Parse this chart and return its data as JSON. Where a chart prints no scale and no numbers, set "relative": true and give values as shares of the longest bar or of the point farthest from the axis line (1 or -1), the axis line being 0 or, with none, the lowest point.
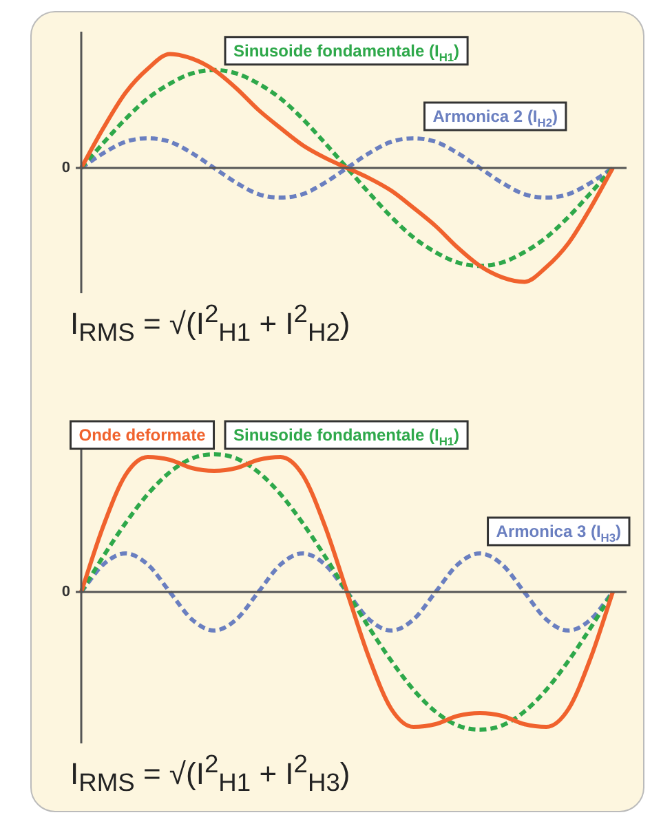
{
  "chart_data": [
    {
      "type": "line",
      "relative": true,
      "legend": false,
      "categories": [
        null,
        null,
        null,
        null,
        null,
        null,
        null,
        null,
        null,
        null,
        null,
        null,
        null,
        null,
        null,
        null,
        null,
        null,
        null,
        null,
        null,
        null,
        null,
        null,
        null
      ],
      "series": [
        {
          "color": "#f0622d",
          "line_style": "solid",
          "values": [
            0,
            0.35,
            0.66,
            0.87,
            1,
            0.96,
            0.86,
            0.7,
            0.51,
            0.35,
            0.2,
            0.09,
            0,
            -0.09,
            -0.2,
            -0.35,
            -0.51,
            -0.7,
            -0.86,
            -0.96,
            -1,
            -0.87,
            -0.66,
            -0.35,
            0
          ]
        },
        {
          "name": "Sinusoide fondamentale (I$_{H1}$)",
          "color": "#2ea84a",
          "line_style": "dashed",
          "values": [
            0,
            0.22,
            0.43,
            0.61,
            0.74,
            0.83,
            0.86,
            0.83,
            0.74,
            0.61,
            0.43,
            0.22,
            0,
            -0.22,
            -0.43,
            -0.61,
            -0.74,
            -0.83,
            -0.86,
            -0.83,
            -0.74,
            -0.61,
            -0.43,
            -0.22,
            0
          ]
        },
        {
          "name": "Armonica 2 (I$_{H2}$)",
          "color": "#6a7fc0",
          "line_style": "dashed",
          "values": [
            0,
            0.13,
            0.23,
            0.26,
            0.23,
            0.13,
            0,
            -0.13,
            -0.23,
            -0.26,
            -0.23,
            -0.13,
            0,
            0.13,
            0.23,
            0.26,
            0.23,
            0.13,
            0,
            -0.13,
            -0.23,
            -0.26,
            -0.23,
            -0.13,
            0
          ]
        }
      ],
      "annotations": [
        "0",
        "I$_{RMS}$ = √(I$^{2}$$_{H1}$ + I$^{2}$$_{H2}$)"
      ]
    },
    {
      "type": "line",
      "relative": true,
      "legend": false,
      "categories": [
        null,
        null,
        null,
        null,
        null,
        null,
        null,
        null,
        null,
        null,
        null,
        null,
        null,
        null,
        null,
        null,
        null,
        null,
        null,
        null,
        null,
        null,
        null,
        null,
        null
      ],
      "series": [
        {
          "name": "Onde deformate",
          "color": "#f0622d",
          "line_style": "solid",
          "values": [
            0,
            0.48,
            0.85,
            0.98,
            0.96,
            0.9,
            0.88,
            0.9,
            0.96,
            0.98,
            0.85,
            0.48,
            0,
            -0.48,
            -0.85,
            -0.98,
            -0.96,
            -0.9,
            -0.88,
            -0.9,
            -0.96,
            -0.98,
            -0.85,
            -0.48,
            0
          ]
        },
        {
          "name": "Sinusoide fondamentale (I$_{H1}$)",
          "color": "#2ea84a",
          "line_style": "dashed",
          "values": [
            0,
            0.26,
            0.5,
            0.71,
            0.87,
            0.97,
            1,
            0.97,
            0.87,
            0.71,
            0.5,
            0.26,
            0,
            -0.26,
            -0.5,
            -0.71,
            -0.87,
            -0.97,
            -1,
            -0.97,
            -0.87,
            -0.71,
            -0.5,
            -0.26,
            0
          ]
        },
        {
          "name": "Armonica 3 (I$_{H3}$)",
          "color": "#6a7fc0",
          "line_style": "dashed",
          "values": [
            0,
            0.2,
            0.28,
            0.2,
            0,
            -0.2,
            -0.28,
            -0.2,
            0,
            0.2,
            0.28,
            0.2,
            0,
            -0.2,
            -0.28,
            -0.2,
            0,
            0.2,
            0.28,
            0.2,
            0,
            -0.2,
            -0.28,
            -0.2,
            0
          ]
        }
      ],
      "annotations": [
        "0",
        "I$_{RMS}$ = √(I$^{2}$$_{H1}$ + I$^{2}$$_{H3}$)"
      ]
    }
  ]
}
